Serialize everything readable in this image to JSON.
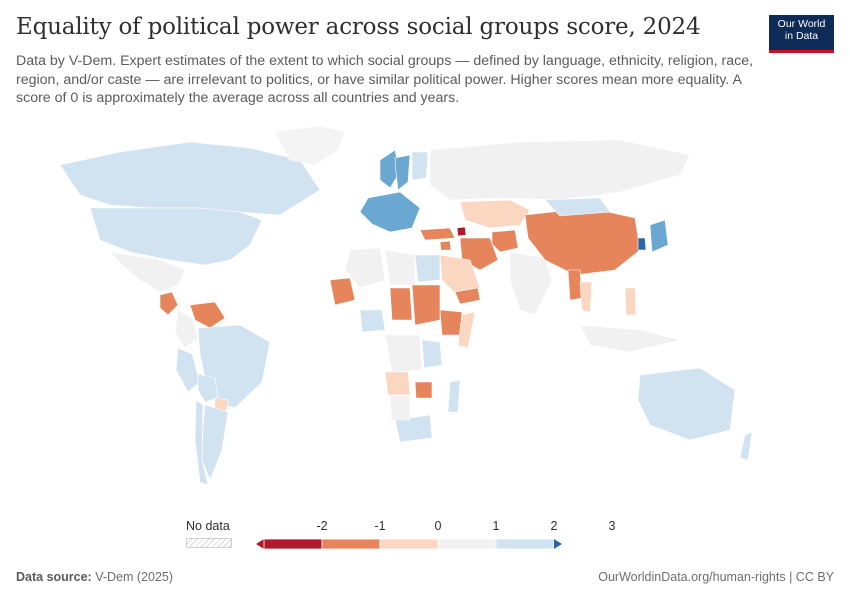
{
  "header": {
    "title": "Equality of political power across social groups score, 2024",
    "subtitle": "Data by V-Dem. Expert estimates of the extent to which social groups — defined by language, ethnicity, religion, race, region, and/or caste — are irrelevant to politics, or have similar political power. Higher scores mean more equality. A score of 0 is approximately the average across all countries and years."
  },
  "logo": {
    "line1": "Our World",
    "line2": "in Data",
    "bg": "#0e2a56",
    "accent": "#c8102e"
  },
  "legend": {
    "no_data_label": "No data",
    "ticks": [
      "-2",
      "-1",
      "0",
      "1",
      "2",
      "3"
    ],
    "colors": [
      "#b2182b",
      "#e6845c",
      "#fbd6c0",
      "#f1f1f1",
      "#d1e3f0",
      "#6aa8d2",
      "#2a67a8"
    ]
  },
  "footer": {
    "source_label": "Data source:",
    "source": "V-Dem (2025)",
    "url": "OurWorldinData.org/human-rights | CC BY"
  },
  "chart_data": {
    "type": "choropleth",
    "year": 2024,
    "scale_breaks": [
      -2,
      -1,
      0,
      1,
      2,
      3
    ],
    "regions": [
      {
        "name": "Canada",
        "value": 1.5
      },
      {
        "name": "United States",
        "value": 1.5
      },
      {
        "name": "Greenland",
        "value": null
      },
      {
        "name": "Mexico",
        "value": 0.5
      },
      {
        "name": "Nicaragua",
        "value": -1.5
      },
      {
        "name": "Venezuela",
        "value": -1.5
      },
      {
        "name": "Colombia",
        "value": 0.5
      },
      {
        "name": "Brazil",
        "value": 1.5
      },
      {
        "name": "Peru",
        "value": 1.5
      },
      {
        "name": "Bolivia",
        "value": 1.5
      },
      {
        "name": "Paraguay",
        "value": -0.5
      },
      {
        "name": "Argentina",
        "value": 1.5
      },
      {
        "name": "Chile",
        "value": 1.5
      },
      {
        "name": "Western Europe",
        "value": 2.5
      },
      {
        "name": "Norway",
        "value": 2.5
      },
      {
        "name": "Sweden",
        "value": 2.5
      },
      {
        "name": "Finland",
        "value": 1.5
      },
      {
        "name": "Russia",
        "value": 0.5
      },
      {
        "name": "Kazakhstan",
        "value": -0.5
      },
      {
        "name": "Azerbaijan",
        "value": -2.5
      },
      {
        "name": "Turkey",
        "value": -1.5
      },
      {
        "name": "Syria",
        "value": -1.5
      },
      {
        "name": "Iran",
        "value": -1.5
      },
      {
        "name": "Afghanistan",
        "value": -1.5
      },
      {
        "name": "Saudi Arabia",
        "value": -0.5
      },
      {
        "name": "Yemen",
        "value": -1.5
      },
      {
        "name": "India",
        "value": 0.5
      },
      {
        "name": "China",
        "value": -1.5
      },
      {
        "name": "Mongolia",
        "value": 1.5
      },
      {
        "name": "Japan",
        "value": 2.5
      },
      {
        "name": "South Korea",
        "value": 3.5
      },
      {
        "name": "Myanmar",
        "value": -1.5
      },
      {
        "name": "Thailand",
        "value": -0.5
      },
      {
        "name": "Philippines",
        "value": -0.5
      },
      {
        "name": "Indonesia",
        "value": 0.5
      },
      {
        "name": "Australia",
        "value": 1.5
      },
      {
        "name": "New Zealand",
        "value": 1.5
      },
      {
        "name": "Algeria",
        "value": 0.5
      },
      {
        "name": "Mali",
        "value": -1.5
      },
      {
        "name": "Libya",
        "value": 0.5
      },
      {
        "name": "Egypt",
        "value": 1.5
      },
      {
        "name": "Chad",
        "value": -1.5
      },
      {
        "name": "Sudan",
        "value": -1.5
      },
      {
        "name": "Ethiopia",
        "value": -1.5
      },
      {
        "name": "Somalia",
        "value": -0.5
      },
      {
        "name": "Nigeria",
        "value": 1.5
      },
      {
        "name": "DR Congo",
        "value": 0.5
      },
      {
        "name": "Angola",
        "value": -0.5
      },
      {
        "name": "Tanzania",
        "value": 1.5
      },
      {
        "name": "Zimbabwe",
        "value": -1.5
      },
      {
        "name": "South Africa",
        "value": 1.5
      },
      {
        "name": "Madagascar",
        "value": 1.5
      },
      {
        "name": "Namibia",
        "value": 0.5
      }
    ]
  }
}
